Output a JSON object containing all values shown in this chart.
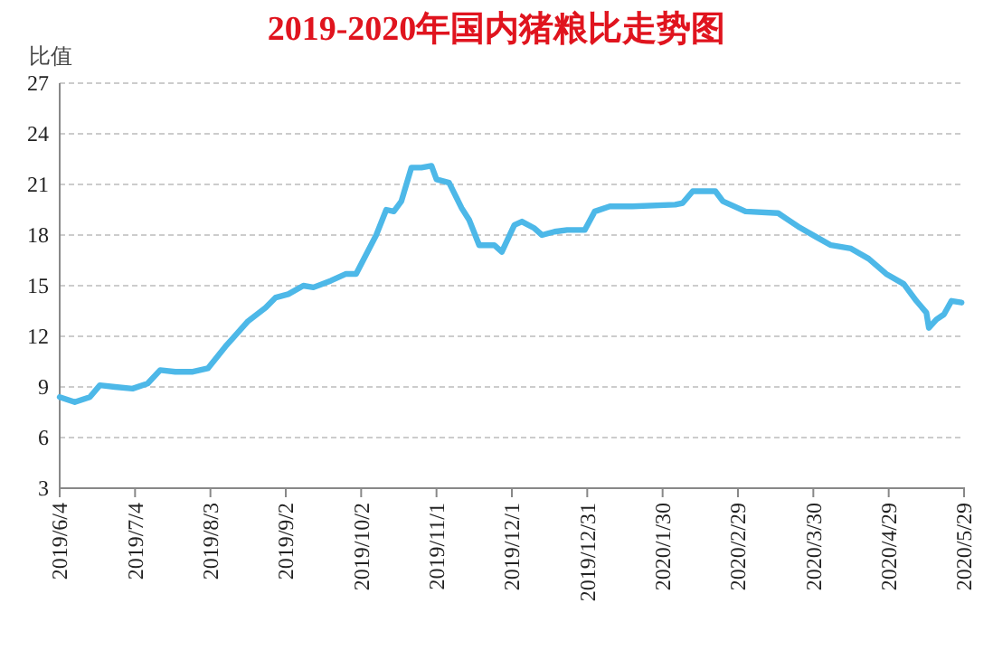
{
  "chart_data": {
    "type": "line",
    "title": "2019-2020年国内猪粮比走势图",
    "ylabel": "比值",
    "x": [
      "2019-06-04",
      "2019-06-10",
      "2019-06-16",
      "2019-06-20",
      "2019-06-26",
      "2019-07-03",
      "2019-07-09",
      "2019-07-14",
      "2019-07-20",
      "2019-07-27",
      "2019-08-02",
      "2019-08-09",
      "2019-08-18",
      "2019-08-25",
      "2019-08-29",
      "2019-09-03",
      "2019-09-09",
      "2019-09-13",
      "2019-09-20",
      "2019-09-26",
      "2019-09-30",
      "2019-10-08",
      "2019-10-12",
      "2019-10-15",
      "2019-10-18",
      "2019-10-22",
      "2019-10-26",
      "2019-10-30",
      "2019-11-01",
      "2019-11-06",
      "2019-11-11",
      "2019-11-14",
      "2019-11-18",
      "2019-11-24",
      "2019-11-27",
      "2019-12-02",
      "2019-12-05",
      "2019-12-10",
      "2019-12-13",
      "2019-12-18",
      "2019-12-23",
      "2019-12-30",
      "2020-01-03",
      "2020-01-09",
      "2020-01-18",
      "2020-02-04",
      "2020-02-07",
      "2020-02-11",
      "2020-02-20",
      "2020-02-23",
      "2020-03-03",
      "2020-03-16",
      "2020-03-19",
      "2020-03-24",
      "2020-03-31",
      "2020-04-06",
      "2020-04-14",
      "2020-04-21",
      "2020-04-28",
      "2020-05-05",
      "2020-05-10",
      "2020-05-14",
      "2020-05-15",
      "2020-05-18",
      "2020-05-21",
      "2020-05-24",
      "2020-05-28"
    ],
    "series": [
      {
        "color": "#4db8e8",
        "values": [
          8.4,
          8.1,
          8.4,
          9.1,
          9.0,
          8.9,
          9.2,
          10.0,
          9.9,
          9.9,
          10.1,
          11.4,
          12.9,
          13.7,
          14.3,
          14.5,
          15.0,
          14.9,
          15.3,
          15.7,
          15.7,
          18.0,
          19.5,
          19.4,
          20.0,
          22.0,
          22.0,
          22.1,
          21.3,
          21.1,
          19.6,
          18.9,
          17.4,
          17.4,
          17.0,
          18.6,
          18.8,
          18.4,
          18.0,
          18.2,
          18.3,
          18.3,
          19.4,
          19.7,
          19.7,
          19.8,
          19.9,
          20.6,
          20.6,
          20.0,
          19.4,
          19.3,
          19.0,
          18.5,
          17.9,
          17.4,
          17.2,
          16.6,
          15.7,
          15.1,
          14.1,
          13.4,
          12.5,
          13.0,
          13.3,
          14.1,
          14.0
        ]
      }
    ],
    "xlim": [
      "2019-06-04",
      "2020-05-29"
    ],
    "xticks": [
      {
        "value": "2019-06-04",
        "label": "2019/6/4"
      },
      {
        "value": "2019-07-04",
        "label": "2019/7/4"
      },
      {
        "value": "2019-08-03",
        "label": "2019/8/3"
      },
      {
        "value": "2019-09-02",
        "label": "2019/9/2"
      },
      {
        "value": "2019-10-02",
        "label": "2019/10/2"
      },
      {
        "value": "2019-11-01",
        "label": "2019/11/1"
      },
      {
        "value": "2019-12-01",
        "label": "2019/12/1"
      },
      {
        "value": "2019-12-31",
        "label": "2019/12/31"
      },
      {
        "value": "2020-01-30",
        "label": "2020/1/30"
      },
      {
        "value": "2020-02-29",
        "label": "2020/2/29"
      },
      {
        "value": "2020-03-30",
        "label": "2020/3/30"
      },
      {
        "value": "2020-04-29",
        "label": "2020/4/29"
      },
      {
        "value": "2020-05-29",
        "label": "2020/5/29"
      }
    ],
    "ylim": [
      3,
      27
    ],
    "yticks": [
      3,
      6,
      9,
      12,
      15,
      18,
      21,
      24,
      27
    ],
    "grid": "y",
    "marker": "none",
    "line_style": "solid"
  }
}
